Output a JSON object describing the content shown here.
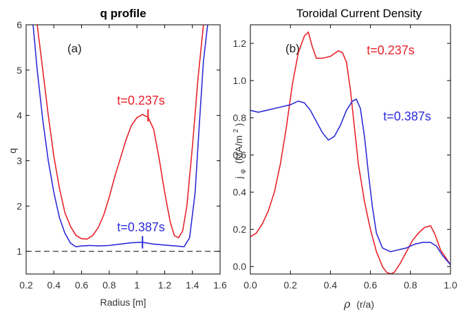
{
  "chart_data": [
    {
      "type": "line",
      "title": "q profile",
      "xlabel": "Radius [m]",
      "ylabel": "q",
      "panel_label": "(a)",
      "xlim": [
        0.2,
        1.6
      ],
      "ylim": [
        0.5,
        6.0
      ],
      "xticks": [
        "0.2",
        "0.4",
        "0.6",
        "0.8",
        "1",
        "1.2",
        "1.4",
        "1.6"
      ],
      "yticks": [
        "1",
        "2",
        "3",
        "4",
        "5",
        "6"
      ],
      "reference_line": {
        "y": 1,
        "style": "dashed",
        "color": "#000000"
      },
      "series": [
        {
          "name": "t=0.237s",
          "color": "#e8212a",
          "x": [
            0.28,
            0.32,
            0.36,
            0.4,
            0.44,
            0.48,
            0.52,
            0.56,
            0.6,
            0.64,
            0.68,
            0.72,
            0.76,
            0.8,
            0.84,
            0.88,
            0.92,
            0.96,
            1.0,
            1.04,
            1.08,
            1.12,
            1.16,
            1.2,
            1.24,
            1.27,
            1.3,
            1.33,
            1.36,
            1.4,
            1.44,
            1.48
          ],
          "y": [
            6.0,
            5.0,
            4.0,
            3.1,
            2.4,
            1.85,
            1.55,
            1.35,
            1.28,
            1.27,
            1.35,
            1.52,
            1.8,
            2.2,
            2.65,
            3.05,
            3.45,
            3.78,
            3.95,
            4.02,
            3.96,
            3.7,
            3.05,
            2.3,
            1.65,
            1.35,
            1.3,
            1.45,
            2.0,
            3.3,
            4.8,
            6.0
          ],
          "annotation": {
            "x": 1.08,
            "y": 4.0
          }
        },
        {
          "name": "t=0.387s",
          "color": "#2b2bd6",
          "x": [
            0.25,
            0.28,
            0.32,
            0.36,
            0.4,
            0.44,
            0.48,
            0.52,
            0.56,
            0.6,
            0.66,
            0.72,
            0.8,
            0.88,
            0.96,
            1.04,
            1.12,
            1.2,
            1.28,
            1.34,
            1.38,
            1.42,
            1.45,
            1.48,
            1.51
          ],
          "y": [
            6.0,
            5.0,
            3.9,
            3.0,
            2.3,
            1.75,
            1.4,
            1.18,
            1.1,
            1.12,
            1.13,
            1.12,
            1.13,
            1.16,
            1.19,
            1.2,
            1.16,
            1.14,
            1.12,
            1.1,
            1.3,
            2.3,
            3.8,
            5.2,
            6.0
          ],
          "annotation": {
            "x": 1.04,
            "y": 1.2
          }
        }
      ]
    },
    {
      "type": "line",
      "title": "Toroidal Current Density",
      "xlabel_symbol": "ρ",
      "xlabel": "(r/a)",
      "ylabel_symbol": "j",
      "ylabel_subscript": "φ",
      "ylabel": "(MA/m",
      "ylabel_superscript": "2",
      "ylabel_close": ")",
      "panel_label": "(b)",
      "xlim": [
        0.0,
        1.0
      ],
      "ylim": [
        -0.04,
        1.3
      ],
      "xticks": [
        "0.0",
        "0.2",
        "0.4",
        "0.6",
        "0.8",
        "1.0"
      ],
      "yticks": [
        "0.0",
        "0.2",
        "0.4",
        "0.6",
        "0.8",
        "1.0",
        "1.2"
      ],
      "series": [
        {
          "name": "t=0.237s",
          "color": "#e8212a",
          "x": [
            0.0,
            0.03,
            0.06,
            0.09,
            0.12,
            0.15,
            0.18,
            0.21,
            0.24,
            0.27,
            0.29,
            0.31,
            0.33,
            0.36,
            0.4,
            0.44,
            0.46,
            0.48,
            0.5,
            0.52,
            0.54,
            0.57,
            0.6,
            0.63,
            0.66,
            0.68,
            0.7,
            0.72,
            0.75,
            0.78,
            0.81,
            0.84,
            0.87,
            0.9,
            0.92,
            0.95,
            1.0
          ],
          "y": [
            0.16,
            0.18,
            0.23,
            0.3,
            0.4,
            0.55,
            0.75,
            0.98,
            1.15,
            1.24,
            1.26,
            1.18,
            1.12,
            1.12,
            1.13,
            1.16,
            1.15,
            1.1,
            0.95,
            0.75,
            0.55,
            0.35,
            0.2,
            0.08,
            0.0,
            -0.03,
            -0.04,
            -0.03,
            0.02,
            0.08,
            0.14,
            0.18,
            0.21,
            0.22,
            0.18,
            0.09,
            0.01
          ]
        },
        {
          "name": "t=0.387s",
          "color": "#2b2bd6",
          "x": [
            0.0,
            0.04,
            0.08,
            0.12,
            0.16,
            0.2,
            0.24,
            0.27,
            0.3,
            0.33,
            0.36,
            0.39,
            0.42,
            0.45,
            0.48,
            0.51,
            0.53,
            0.55,
            0.57,
            0.59,
            0.61,
            0.63,
            0.66,
            0.7,
            0.74,
            0.78,
            0.82,
            0.86,
            0.9,
            0.93,
            0.96,
            1.0
          ],
          "y": [
            0.84,
            0.83,
            0.84,
            0.85,
            0.86,
            0.87,
            0.89,
            0.88,
            0.84,
            0.78,
            0.72,
            0.68,
            0.7,
            0.76,
            0.84,
            0.89,
            0.9,
            0.85,
            0.7,
            0.5,
            0.32,
            0.18,
            0.1,
            0.08,
            0.09,
            0.1,
            0.12,
            0.13,
            0.13,
            0.11,
            0.06,
            0.01
          ]
        }
      ]
    }
  ]
}
